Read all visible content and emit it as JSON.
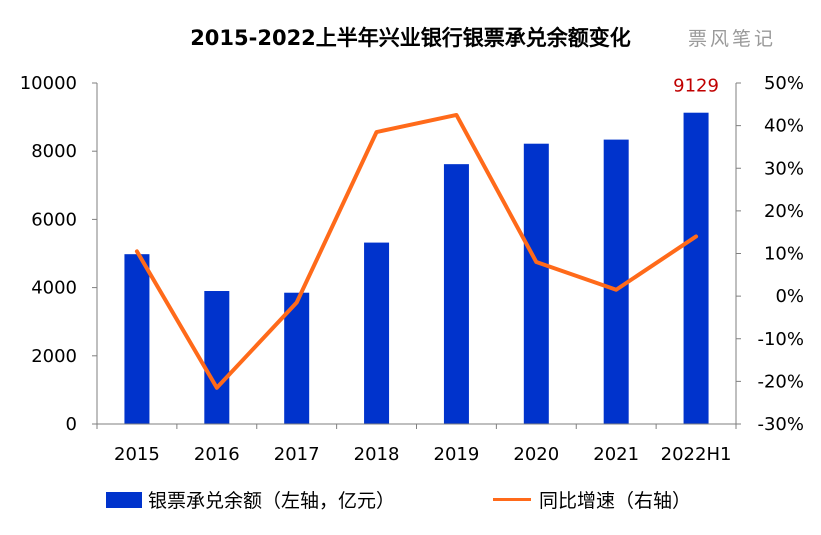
{
  "title": "2015-2022上半年兴业银行银票承兑余额变化",
  "watermark": "票风笔记",
  "colors": {
    "bar": "#0033cc",
    "line": "#ff6a1a",
    "label": "#c00000"
  },
  "chart_data": {
    "type": "bar+line",
    "categories": [
      "2015",
      "2016",
      "2017",
      "2018",
      "2019",
      "2020",
      "2021",
      "2022H1"
    ],
    "series": [
      {
        "name": "银票承兑余额（左轴，亿元）",
        "type": "bar",
        "axis": "left",
        "values": [
          4980,
          3900,
          3850,
          5320,
          7620,
          8220,
          8340,
          9129
        ]
      },
      {
        "name": "同比增速（右轴）",
        "type": "line",
        "axis": "right",
        "values": [
          10.5,
          -21.5,
          -1.5,
          38.5,
          42.5,
          8.0,
          1.5,
          14.0
        ]
      }
    ],
    "y_left": {
      "ylim": [
        0,
        10000
      ],
      "ticks": [
        "0",
        "2000",
        "4000",
        "6000",
        "8000",
        "10000"
      ]
    },
    "y_right": {
      "ylim": [
        -30,
        50
      ],
      "ticks": [
        "-30%",
        "-20%",
        "-10%",
        "0%",
        "10%",
        "20%",
        "30%",
        "40%",
        "50%"
      ]
    },
    "data_labels": [
      {
        "category": "2022H1",
        "text": "9129"
      }
    ],
    "legend": {
      "position": "bottom",
      "bar_label": "银票承兑余额（左轴，亿元）",
      "line_label": "同比增速（右轴）"
    }
  }
}
